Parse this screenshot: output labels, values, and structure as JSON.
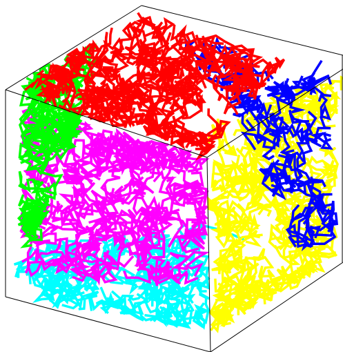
{
  "scene": {
    "colors": [
      "#00ffff",
      "#ff00ff",
      "#00ff00",
      "#ffff00",
      "#0000ff",
      "#ff0000"
    ]
  }
}
